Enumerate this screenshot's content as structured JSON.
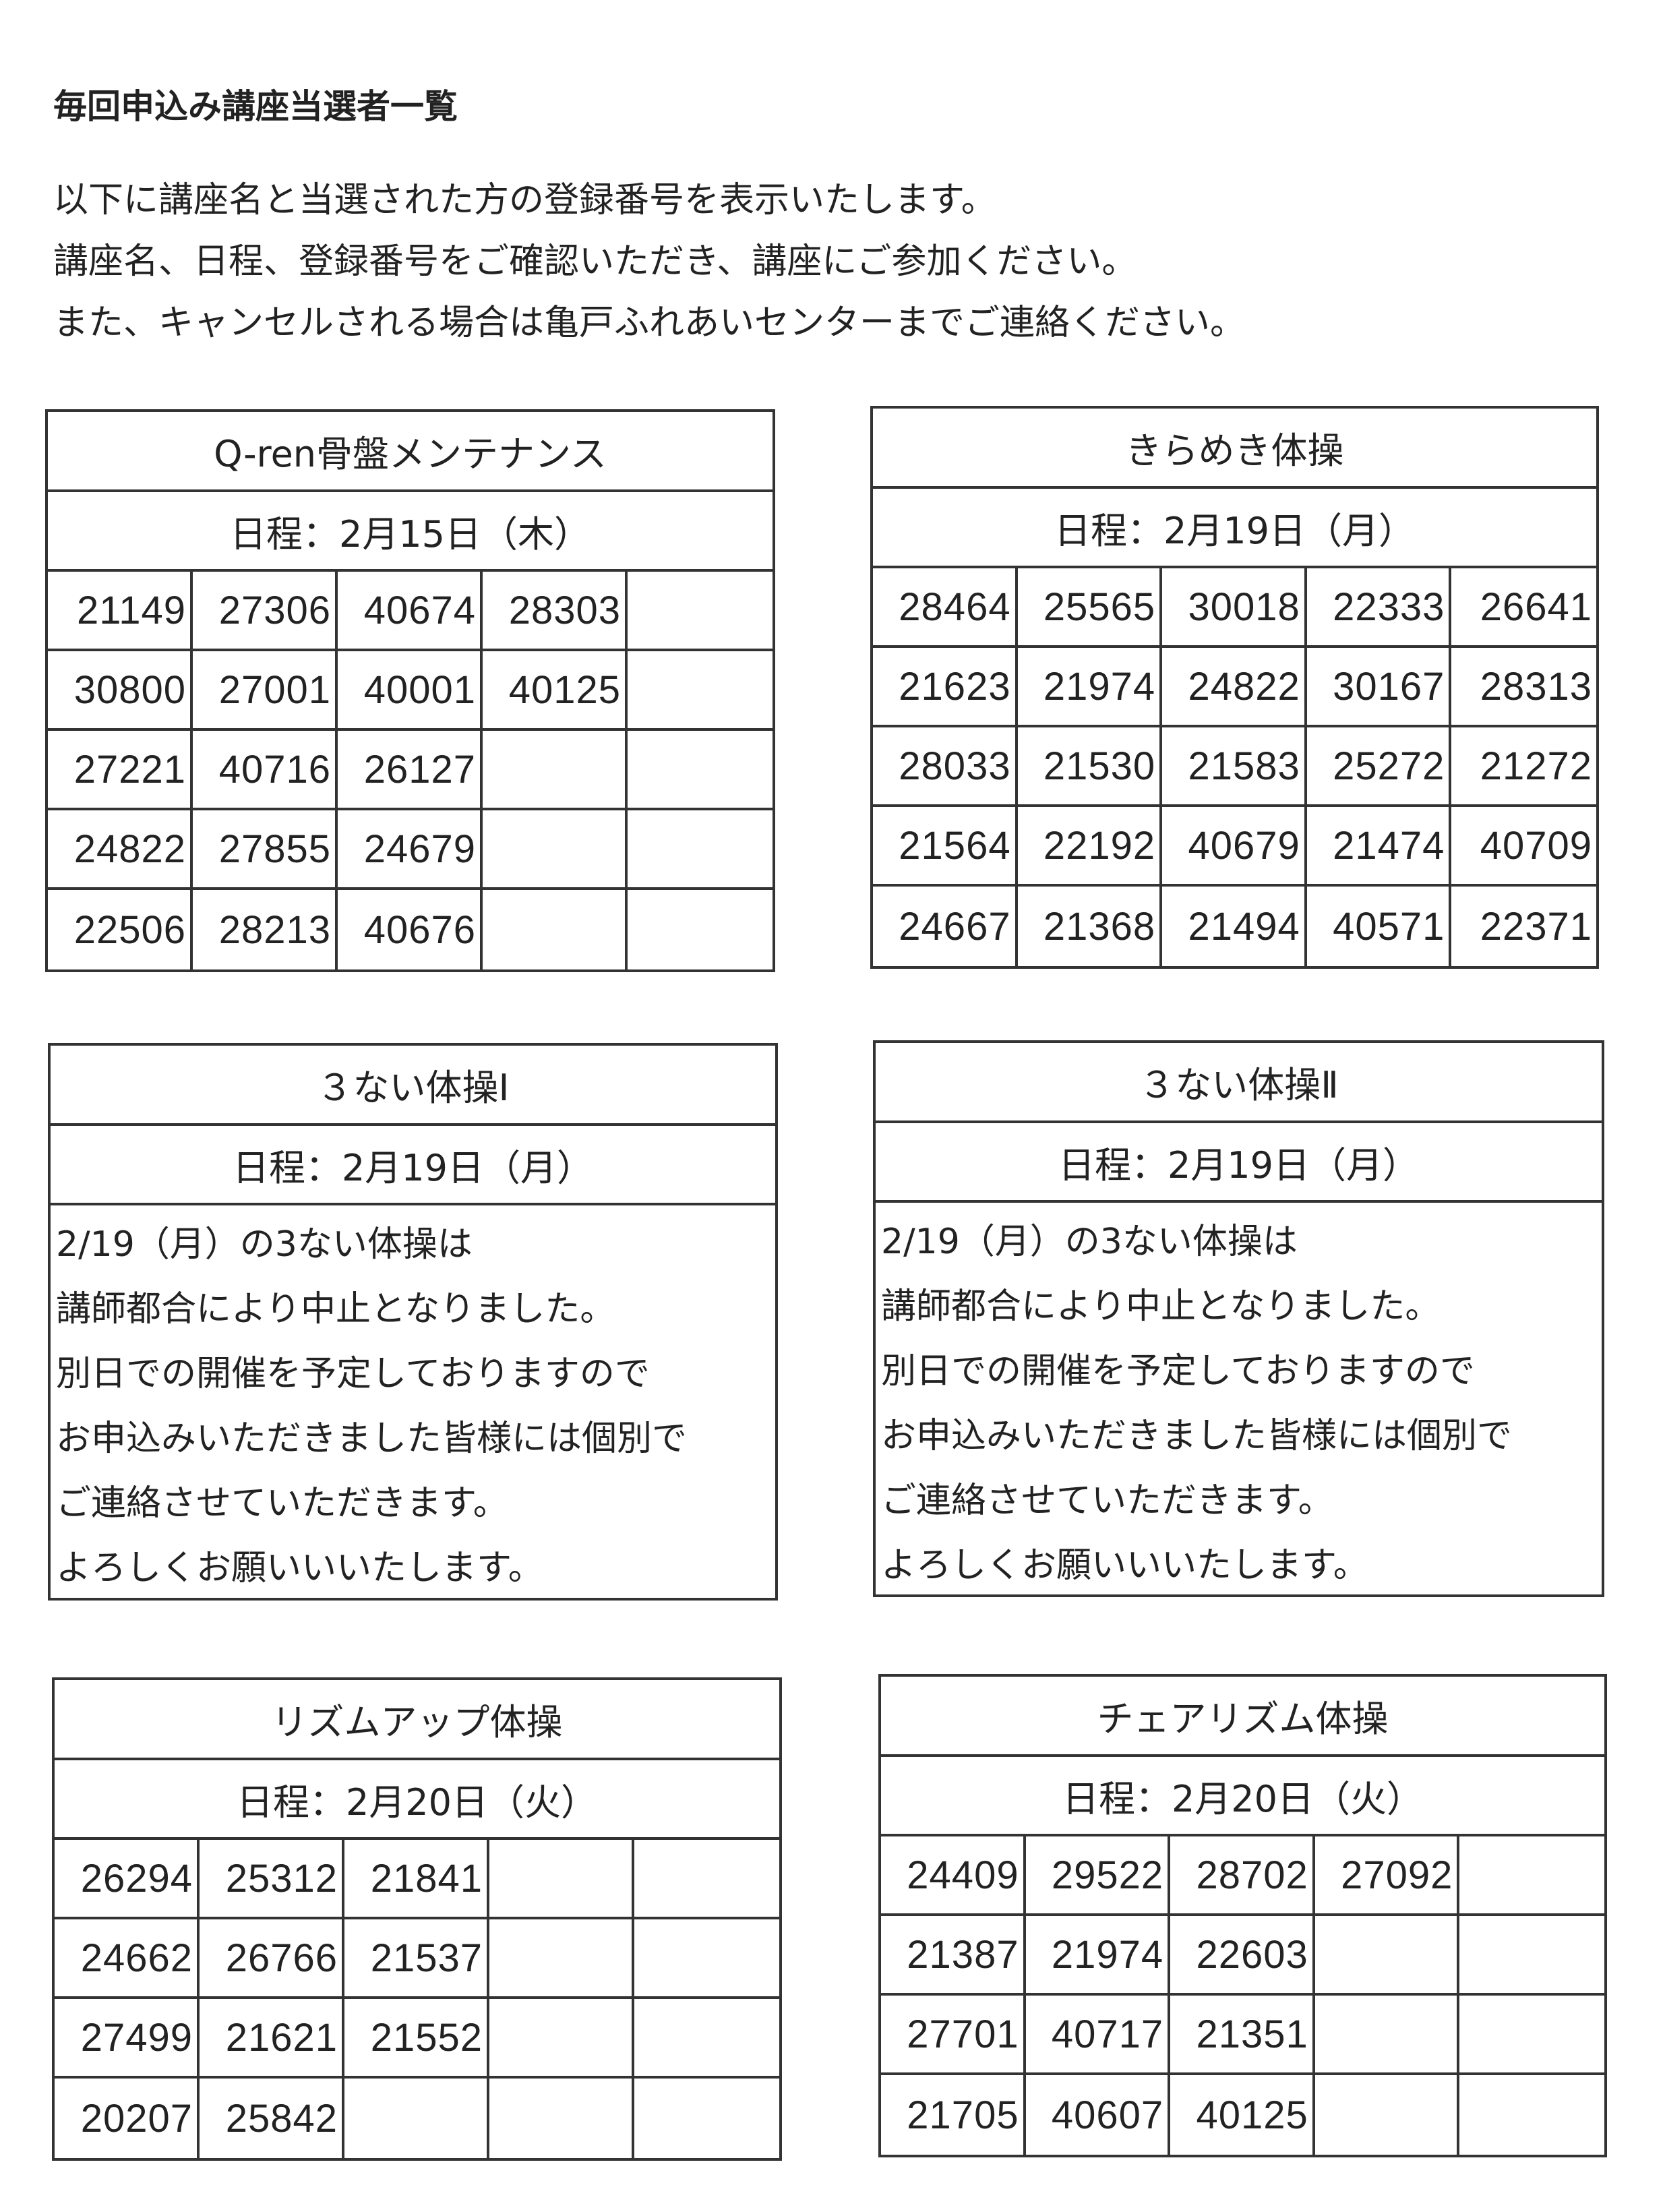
{
  "page_title": "毎回申込み講座当選者一覧",
  "intro": [
    "以下に講座名と当選された方の登録番号を表示いたします。",
    "講座名、日程、登録番号をご確認いただき、講座にご参加ください。",
    "また、キャンセルされる場合は亀戸ふれあいセンターまでご連絡ください。"
  ],
  "courses": [
    {
      "name": "Q-ren骨盤メンテナンス",
      "date": "日程：2月15日（木）",
      "rows": [
        [
          "21149",
          "27306",
          "40674",
          "28303",
          ""
        ],
        [
          "30800",
          "27001",
          "40001",
          "40125",
          ""
        ],
        [
          "27221",
          "40716",
          "26127",
          "",
          ""
        ],
        [
          "24822",
          "27855",
          "24679",
          "",
          ""
        ],
        [
          "22506",
          "28213",
          "40676",
          "",
          ""
        ]
      ]
    },
    {
      "name": "きらめき体操",
      "date": "日程：2月19日（月）",
      "rows": [
        [
          "28464",
          "25565",
          "30018",
          "22333",
          "26641"
        ],
        [
          "21623",
          "21974",
          "24822",
          "30167",
          "28313"
        ],
        [
          "28033",
          "21530",
          "21583",
          "25272",
          "21272"
        ],
        [
          "21564",
          "22192",
          "40679",
          "21474",
          "40709"
        ],
        [
          "24667",
          "21368",
          "21494",
          "40571",
          "22371"
        ]
      ]
    },
    {
      "name": "３ない体操Ⅰ",
      "date": "日程：2月19日（月）",
      "notice": [
        "2/19（月）の3ない体操は",
        "講師都合により中止となりました。",
        "別日での開催を予定しておりますので",
        "お申込みいただきました皆様には個別で",
        "ご連絡させていただきます。",
        "よろしくお願いいいたします。"
      ]
    },
    {
      "name": "３ない体操Ⅱ",
      "date": "日程：2月19日（月）",
      "notice": [
        "2/19（月）の3ない体操は",
        "講師都合により中止となりました。",
        "別日での開催を予定しておりますので",
        "お申込みいただきました皆様には個別で",
        "ご連絡させていただきます。",
        "よろしくお願いいいたします。"
      ]
    },
    {
      "name": "リズムアップ体操",
      "date": "日程：2月20日（火）",
      "rows": [
        [
          "26294",
          "25312",
          "21841",
          "",
          ""
        ],
        [
          "24662",
          "26766",
          "21537",
          "",
          ""
        ],
        [
          "27499",
          "21621",
          "21552",
          "",
          ""
        ],
        [
          "20207",
          "25842",
          "",
          "",
          ""
        ]
      ]
    },
    {
      "name": "チェアリズム体操",
      "date": "日程：2月20日（火）",
      "rows": [
        [
          "24409",
          "29522",
          "28702",
          "27092",
          ""
        ],
        [
          "21387",
          "21974",
          "22603",
          "",
          ""
        ],
        [
          "27701",
          "40717",
          "21351",
          "",
          ""
        ],
        [
          "21705",
          "40607",
          "40125",
          "",
          ""
        ]
      ]
    }
  ]
}
